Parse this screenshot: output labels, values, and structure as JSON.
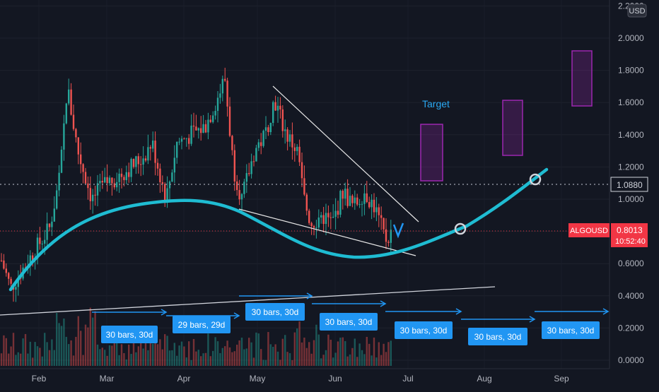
{
  "chart_data": {
    "type": "candlestick",
    "symbol": "ALGOUSD",
    "currency": "USD",
    "y_ticks": [
      "0.0000",
      "0.2000",
      "0.4000",
      "0.6000",
      "0.8000",
      "1.0000",
      "1.2000",
      "1.4000",
      "1.6000",
      "1.8000",
      "2.0000",
      "2.2000"
    ],
    "x_ticks": [
      "Feb",
      "Mar",
      "Apr",
      "May",
      "Jun",
      "Jul",
      "Aug",
      "Sep"
    ],
    "last_price": "0.8013",
    "countdown": "10:52:40",
    "level_label": "1.0880",
    "annotations": {
      "target": "Target",
      "bar_counts": [
        "30 bars, 30d",
        "29 bars, 29d",
        "30 bars, 30d",
        "30 bars, 30d",
        "30 bars, 30d",
        "30 bars, 30d",
        "30 bars, 30d"
      ]
    },
    "colors": {
      "background": "#131722",
      "up": "#26a69a",
      "down": "#ef5350",
      "curve": "#1fbcd2",
      "target_box": "#9c27b0",
      "label_bg": "#2196f3",
      "price_tag": "#f23645"
    }
  }
}
